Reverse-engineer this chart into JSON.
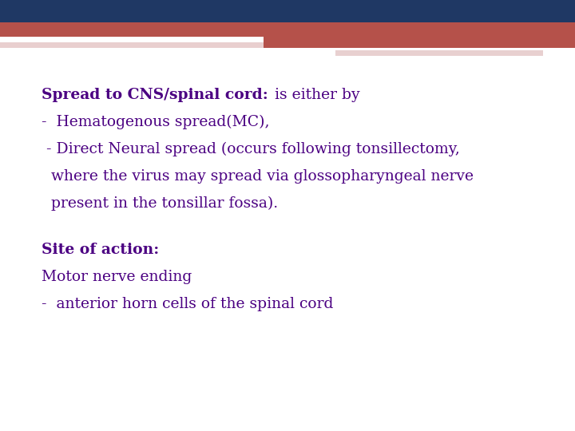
{
  "bg_color": "#ffffff",
  "header_blue_color": "#1f3864",
  "header_red_color": "#b5514a",
  "header_pink_color": "#d4a0a0",
  "header_light_color": "#e8d0d0",
  "text_color": "#4b0082",
  "line1_bold": "Spread to CNS/spinal cord:",
  "line1_normal": " is either by",
  "line2": "-  Hematogenous spread(MC),",
  "line3": " - Direct Neural spread (occurs following tonsillectomy,",
  "line4": "  where the virus may spread via glossopharyngeal nerve",
  "line5": "  present in the tonsillar fossa).",
  "line7_bold": "Site of action:",
  "line8": "Motor nerve ending",
  "line9": "-  anterior horn cells of the spinal cord",
  "font_size": 13.5
}
